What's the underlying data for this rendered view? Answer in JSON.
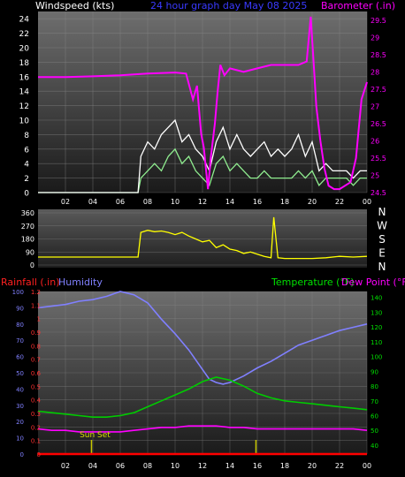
{
  "header": {
    "title": "24 hour graph day   May 08 2025",
    "wind_label": "Windspeed (kts)",
    "baro_label": "Barometer (.in)"
  },
  "lower_header": {
    "rain_label": "Rainfall (.in)",
    "humidity_label": "Humidity",
    "temp_label": "Temperature (°F)",
    "dew_label": "Dew Point (°F)"
  },
  "colors": {
    "background": "#000000",
    "wind": "#ffffff",
    "gust_avg": "#90ee90",
    "barometer": "#ff00ff",
    "wind_dir": "#ffff00",
    "humidity": "#8080ff",
    "temperature": "#00cc00",
    "dewpoint": "#ff00ff",
    "rain": "#ff0000",
    "sunmark": "#c8c800"
  },
  "chart_data": [
    {
      "type": "line",
      "title": "24 hour graph day   May 08 2025",
      "xlabel": "",
      "ylabel": "Windspeed (kts)",
      "y2label": "Barometer (.in)",
      "x_ticks": [
        "02",
        "04",
        "06",
        "08",
        "10",
        "12",
        "14",
        "16",
        "18",
        "20",
        "22",
        "00"
      ],
      "ylim": [
        0,
        25
      ],
      "y_ticks": [
        0,
        2,
        4,
        6,
        8,
        10,
        12,
        14,
        16,
        18,
        20,
        22,
        24
      ],
      "y2lim": [
        24.5,
        29.75
      ],
      "y2_ticks": [
        24.5,
        25,
        25.5,
        26,
        26.5,
        27,
        27.5,
        28,
        28.5,
        29,
        29.5
      ],
      "grid": true,
      "series": [
        {
          "name": "",
          "axis": "left",
          "x": [
            0,
            6.3,
            7.3,
            7.5,
            8,
            8.5,
            9,
            9.5,
            10,
            10.5,
            11,
            11.5,
            12,
            12.5,
            13,
            13.5,
            14,
            14.5,
            15,
            15.5,
            16,
            16.5,
            17,
            17.5,
            18,
            18.5,
            19,
            19.5,
            20,
            20.5,
            21,
            21.5,
            22,
            22.5,
            23,
            23.5,
            24
          ],
          "y": [
            0,
            0,
            0,
            2,
            3,
            4,
            3,
            5,
            6,
            4,
            5,
            3,
            2,
            1,
            4,
            5,
            3,
            4,
            3,
            2,
            2,
            3,
            2,
            2,
            2,
            2,
            3,
            2,
            3,
            1,
            2,
            2,
            2,
            2,
            1,
            2,
            2
          ]
        },
        {
          "name": "",
          "axis": "left",
          "x": [
            0,
            6.3,
            7.3,
            7.5,
            8,
            8.5,
            9,
            9.5,
            10,
            10.5,
            11,
            11.5,
            12,
            12.5,
            13,
            13.5,
            14,
            14.5,
            15,
            15.5,
            16,
            16.5,
            17,
            17.5,
            18,
            18.5,
            19,
            19.5,
            20,
            20.5,
            21,
            21.5,
            22,
            22.5,
            23,
            23.5,
            24
          ],
          "y": [
            0,
            0,
            0,
            5,
            7,
            6,
            8,
            9,
            10,
            7,
            8,
            6,
            5,
            3,
            7,
            9,
            6,
            8,
            6,
            5,
            6,
            7,
            5,
            6,
            5,
            6,
            8,
            5,
            7,
            3,
            4,
            3,
            3,
            3,
            2,
            3,
            3
          ]
        },
        {
          "name": "",
          "axis": "right",
          "x": [
            0,
            2,
            4,
            6,
            8,
            10,
            10.8,
            11.3,
            11.6,
            11.9,
            12.1,
            12.4,
            12.6,
            12.9,
            13.1,
            13.3,
            13.6,
            14,
            15,
            16,
            17,
            18,
            19,
            19.6,
            19.9,
            20.1,
            20.3,
            20.6,
            20.9,
            21.2,
            21.6,
            22,
            22.4,
            22.8,
            23.2,
            23.6,
            24
          ],
          "y": [
            27.85,
            27.85,
            27.87,
            27.9,
            27.95,
            27.98,
            27.95,
            27.2,
            27.6,
            26.2,
            25.8,
            24.6,
            25.5,
            26.5,
            27.4,
            28.2,
            27.9,
            28.1,
            28.0,
            28.1,
            28.2,
            28.2,
            28.2,
            28.3,
            29.6,
            28.3,
            27.0,
            26.0,
            25.2,
            24.7,
            24.6,
            24.6,
            24.7,
            24.8,
            25.5,
            27.2,
            27.7
          ]
        }
      ]
    },
    {
      "type": "line",
      "title": "",
      "xlabel": "",
      "ylabel": "",
      "right_labels": [
        "N",
        "W",
        "S",
        "E",
        "N"
      ],
      "ylim": [
        0,
        360
      ],
      "y_ticks": [
        0,
        90,
        180,
        270,
        360
      ],
      "grid": true,
      "series": [
        {
          "name": "",
          "x": [
            0,
            6.3,
            7.3,
            7.5,
            8,
            8.5,
            9,
            9.5,
            10,
            10.5,
            11,
            11.5,
            12,
            12.5,
            13,
            13.5,
            14,
            14.5,
            15,
            15.5,
            16,
            16.5,
            17,
            17.2,
            17.5,
            18,
            19,
            20,
            21,
            22,
            23,
            24
          ],
          "y": [
            55,
            55,
            55,
            225,
            240,
            230,
            235,
            225,
            210,
            225,
            200,
            180,
            160,
            170,
            120,
            140,
            110,
            100,
            80,
            90,
            75,
            60,
            50,
            330,
            50,
            45,
            45,
            45,
            50,
            60,
            55,
            60
          ]
        }
      ]
    },
    {
      "type": "line",
      "title": "",
      "xlabel": "",
      "ylabel": "Humidity",
      "x_ticks": [
        "02",
        "04",
        "06",
        "08",
        "10",
        "12",
        "14",
        "16",
        "18",
        "20",
        "22",
        "00"
      ],
      "y_left_ticks": [
        0,
        10,
        20,
        30,
        40,
        50,
        60,
        70,
        80,
        90,
        100
      ],
      "rain_ticks": [
        0,
        0.1,
        0.2,
        0.3,
        0.4,
        0.5,
        0.6,
        0.7,
        0.8,
        0.9,
        1,
        1.1,
        1.2
      ],
      "temp_ticks": [
        40,
        50,
        60,
        70,
        80,
        90,
        100,
        110,
        120,
        130,
        140
      ],
      "ylim": [
        0,
        100
      ],
      "rainlim": [
        0,
        1.2
      ],
      "templim": [
        34,
        144
      ],
      "grid": true,
      "annotations": [
        {
          "text": "Sun Set",
          "hour": 3.9
        }
      ],
      "markers_hours": [
        3.9,
        15.9
      ],
      "series": [
        {
          "name": "Humidity",
          "axis": "left",
          "x": [
            0,
            1,
            2,
            3,
            4,
            5,
            6,
            7,
            8,
            9,
            10,
            11,
            12,
            12.5,
            13,
            13.5,
            14,
            15,
            16,
            17,
            18,
            19,
            20,
            21,
            22,
            23,
            24
          ],
          "y": [
            90,
            91,
            92,
            94,
            95,
            97,
            100,
            98,
            93,
            83,
            74,
            64,
            52,
            46,
            44,
            43,
            44,
            48,
            53,
            57,
            62,
            67,
            70,
            73,
            76,
            78,
            80
          ]
        },
        {
          "name": "Temperature",
          "axis": "temp",
          "x": [
            0,
            1,
            2,
            3,
            4,
            5,
            6,
            7,
            8,
            9,
            10,
            11,
            12,
            13,
            14,
            15,
            16,
            17,
            18,
            19,
            20,
            21,
            22,
            23,
            24
          ],
          "y": [
            63,
            62,
            61,
            60,
            59,
            59,
            60,
            62,
            66,
            70,
            74,
            78,
            83,
            86,
            84,
            80,
            75,
            72,
            70,
            69,
            68,
            67,
            66,
            65,
            64
          ]
        },
        {
          "name": "Dew Point",
          "axis": "temp",
          "x": [
            0,
            1,
            2,
            3,
            4,
            5,
            6,
            7,
            8,
            9,
            10,
            11,
            12,
            13,
            14,
            15,
            16,
            17,
            18,
            19,
            20,
            21,
            22,
            23,
            24
          ],
          "y": [
            51,
            50,
            50,
            49,
            49,
            49,
            49,
            50,
            51,
            52,
            52,
            53,
            53,
            53,
            52,
            52,
            51,
            51,
            51,
            51,
            51,
            51,
            51,
            51,
            50
          ]
        },
        {
          "name": "Rainfall",
          "axis": "rain",
          "x": [
            0,
            24
          ],
          "y": [
            0,
            0
          ]
        }
      ]
    }
  ]
}
